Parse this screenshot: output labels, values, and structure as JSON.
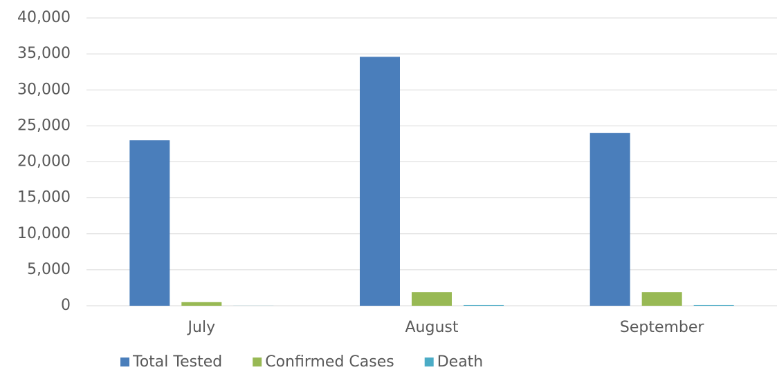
{
  "chart_data": {
    "type": "bar",
    "categories": [
      "July",
      "August",
      "September"
    ],
    "series": [
      {
        "name": "Total Tested",
        "color": "#4a7ebb",
        "values": [
          23000,
          34600,
          24000
        ]
      },
      {
        "name": "Confirmed Cases",
        "color": "#98b954",
        "values": [
          500,
          1900,
          1900
        ]
      },
      {
        "name": "Death",
        "color": "#4bacc6",
        "values": [
          10,
          100,
          100
        ]
      }
    ],
    "ylim": [
      0,
      40000
    ],
    "yticks": [
      0,
      {
        "value": 5000,
        "label": "5,000"
      },
      {
        "value": 10000,
        "label": "10,000"
      },
      {
        "value": 15000,
        "label": "15,000"
      },
      {
        "value": 20000,
        "label": "20,000"
      },
      {
        "value": 25000,
        "label": "25,000"
      },
      {
        "value": 30000,
        "label": "30,000"
      },
      {
        "value": 35000,
        "label": "35,000"
      },
      {
        "value": 40000,
        "label": "40,000"
      }
    ],
    "grid": true,
    "legend": "bottom"
  }
}
